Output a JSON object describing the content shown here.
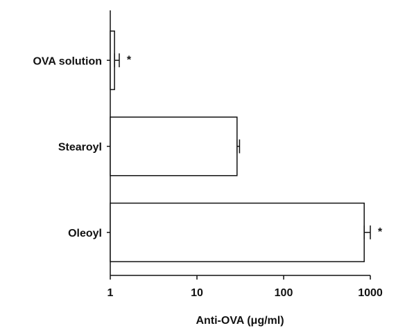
{
  "chart_data": {
    "type": "bar",
    "orientation": "horizontal",
    "xlabel": "Anti-OVA (μg/ml)",
    "categories": [
      "OVA solution",
      "Stearoyl",
      "Oleoyl"
    ],
    "values": [
      1.12,
      29,
      850
    ],
    "errors": [
      0.15,
      2,
      150
    ],
    "annotations": [
      "*",
      null,
      "*"
    ],
    "color": "#ffffff",
    "xscale": "log",
    "xlim": [
      1,
      1000
    ],
    "xticks": [
      1,
      10,
      100,
      1000
    ],
    "grid": false
  }
}
